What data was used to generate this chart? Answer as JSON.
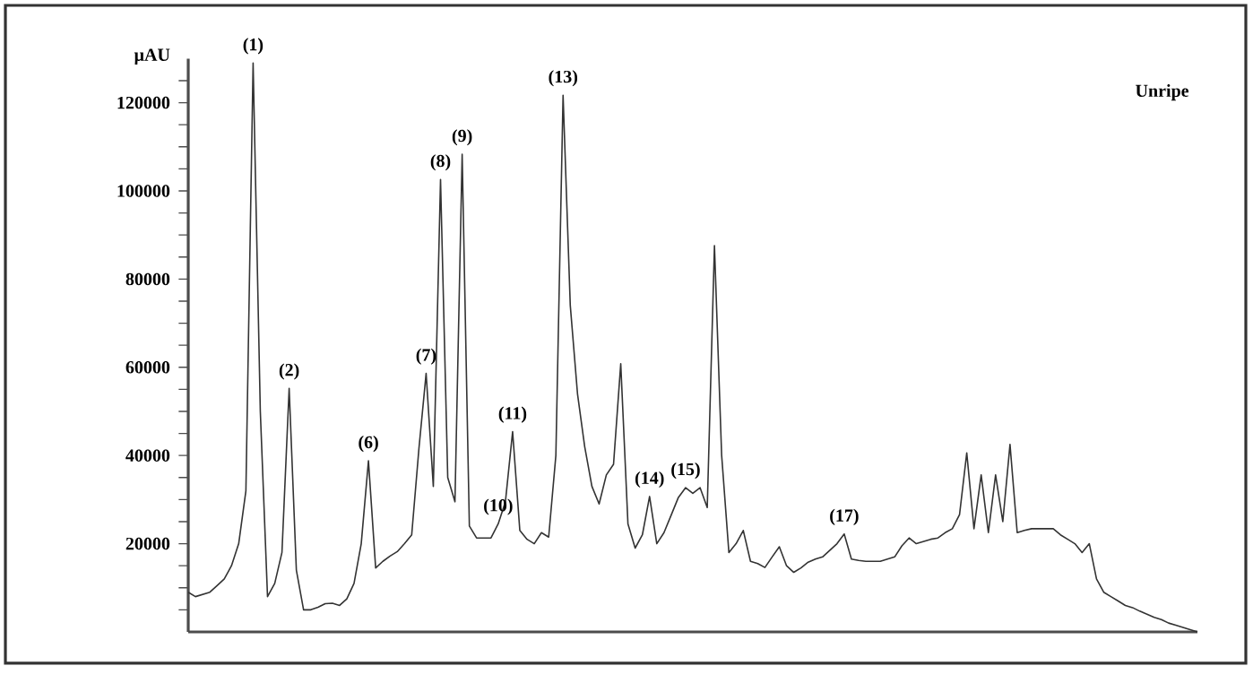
{
  "chart_data": {
    "type": "line",
    "ylabel": "µAU",
    "color": "#333333",
    "tick_labels": "y",
    "ylim": [
      0,
      130000
    ],
    "yticks": [
      {
        "value": 5000,
        "label": null
      },
      {
        "value": 10000,
        "label": null
      },
      {
        "value": 15000,
        "label": null
      },
      20000,
      {
        "value": 25000,
        "label": null
      },
      {
        "value": 30000,
        "label": null
      },
      {
        "value": 35000,
        "label": null
      },
      40000,
      {
        "value": 45000,
        "label": null
      },
      {
        "value": 50000,
        "label": null
      },
      {
        "value": 55000,
        "label": null
      },
      60000,
      {
        "value": 65000,
        "label": null
      },
      {
        "value": 70000,
        "label": null
      },
      {
        "value": 75000,
        "label": null
      },
      80000,
      {
        "value": 85000,
        "label": null
      },
      {
        "value": 90000,
        "label": null
      },
      {
        "value": 95000,
        "label": null
      },
      100000,
      {
        "value": 105000,
        "label": null
      },
      {
        "value": 110000,
        "label": null
      },
      {
        "value": 115000,
        "label": null
      },
      120000,
      {
        "value": 125000,
        "label": null
      }
    ],
    "categories": [
      null,
      null,
      null,
      null,
      null,
      null,
      null,
      null,
      null,
      null,
      null,
      null,
      null,
      null,
      null,
      null,
      null,
      null,
      null,
      null,
      null,
      null,
      null,
      null,
      null,
      null,
      null,
      null,
      null,
      null,
      null,
      null,
      null,
      null,
      null,
      null,
      null,
      null,
      null,
      null,
      null,
      null,
      null,
      null,
      null,
      null,
      null,
      null,
      null,
      null,
      null,
      null,
      null,
      null,
      null,
      null,
      null,
      null,
      null,
      null,
      null,
      null,
      null,
      null,
      null,
      null,
      null,
      null,
      null,
      null,
      null,
      null,
      null,
      null,
      null,
      null,
      null,
      null,
      null,
      null,
      null,
      null,
      null,
      null,
      null,
      null,
      null,
      null,
      null,
      null,
      null,
      null,
      null,
      null,
      null,
      null,
      null,
      null,
      null,
      null,
      null,
      null,
      null,
      null,
      null,
      null,
      null,
      null,
      null,
      null,
      null,
      null,
      null,
      null,
      null,
      null,
      null,
      null,
      null,
      null,
      null,
      null,
      null,
      null,
      null,
      null,
      null,
      null,
      null,
      null,
      null,
      null,
      null,
      null,
      null,
      null,
      null,
      null,
      null,
      null,
      null
    ],
    "values": [
      9000,
      8000,
      8500,
      9000,
      10500,
      12000,
      15000,
      20000,
      32000,
      129000,
      50000,
      8000,
      11000,
      18000,
      55200,
      14000,
      5000,
      5000,
      5600,
      6400,
      6500,
      6000,
      7500,
      11000,
      20000,
      38800,
      14500,
      16000,
      17200,
      18200,
      20000,
      22000,
      41500,
      58600,
      33000,
      102600,
      35000,
      29500,
      108300,
      24000,
      21300,
      21300,
      21300,
      24500,
      29500,
      45400,
      23000,
      21000,
      20000,
      22500,
      21500,
      40000,
      121700,
      74000,
      54000,
      42000,
      33000,
      29000,
      35600,
      38000,
      60800,
      24500,
      19000,
      22000,
      30700,
      20000,
      22500,
      26500,
      30500,
      32700,
      31400,
      32700,
      28200,
      87600,
      40000,
      18000,
      20000,
      23000,
      16000,
      15500,
      14600,
      17000,
      19300,
      15000,
      13500,
      14500,
      15800,
      16500,
      17000,
      18500,
      20000,
      22200,
      16500,
      16200,
      16000,
      16000,
      16000,
      16500,
      17000,
      19500,
      21300,
      20000,
      20500,
      21000,
      21300,
      22500,
      23400,
      26600,
      40600,
      23400,
      35600,
      22500,
      35600,
      25000,
      42500,
      22500,
      23000,
      23400,
      23400,
      23400,
      23400,
      22000,
      21000,
      20000,
      18000,
      20000,
      12000,
      9000,
      8000,
      7000,
      6000,
      5500,
      4700,
      4000,
      3300,
      2800,
      2000,
      1500,
      1000,
      500,
      0
    ],
    "annotations": [
      {
        "text": "(1)",
        "y": 129000
      },
      {
        "text": "(2)",
        "y": 55200
      },
      {
        "text": "(6)",
        "y": 38800
      },
      {
        "text": "(7)",
        "y": 58600
      },
      {
        "text": "(8)",
        "y": 102600
      },
      {
        "text": "(9)",
        "y": 108300
      },
      {
        "text": "(10)",
        "y": 24500
      },
      {
        "text": "(11)",
        "y": 45400
      },
      {
        "text": "(13)",
        "y": 121700
      },
      {
        "text": "(14)",
        "y": 30700
      },
      {
        "text": "(15)",
        "y": 32700
      },
      {
        "text": "(17)",
        "y": 22200
      },
      "Unripe"
    ]
  }
}
